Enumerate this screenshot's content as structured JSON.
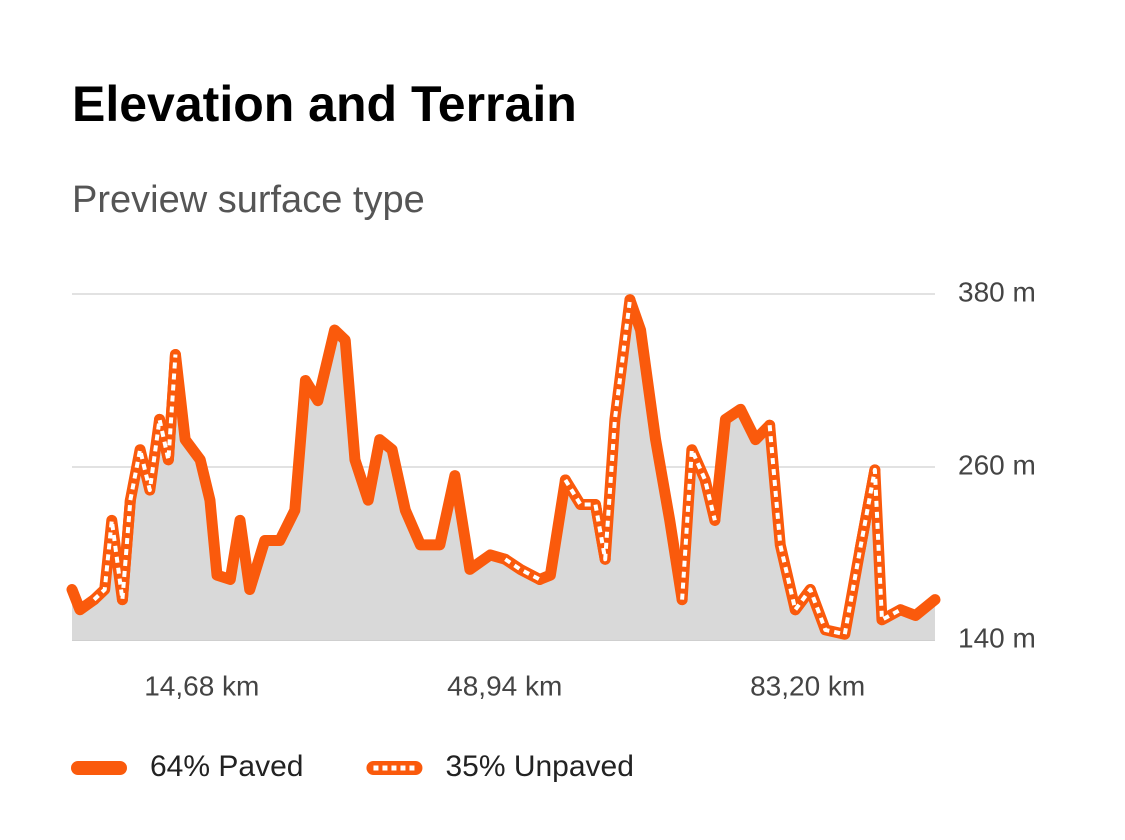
{
  "chart_data": {
    "type": "area-surface",
    "title": "Elevation and Terrain",
    "subtitle": "Preview surface type",
    "xlim": [
      0,
      97.6
    ],
    "xticks": [
      {
        "value": 14.68,
        "label": "14,68 km"
      },
      {
        "value": 48.94,
        "label": "48,94 km"
      },
      {
        "value": 83.2,
        "label": "83,20 km"
      }
    ],
    "ylim": [
      140,
      380
    ],
    "yticks": [
      {
        "value": 140,
        "label": "140 m"
      },
      {
        "value": 260,
        "label": "260 m"
      },
      {
        "value": 380,
        "label": "380 m"
      }
    ],
    "grid": true,
    "area_color": "#d9d9d9",
    "x": [
      0,
      0.9,
      2.5,
      3.7,
      4.5,
      5.7,
      6.6,
      7.7,
      8.8,
      9.9,
      10.9,
      11.7,
      12.8,
      14.5,
      15.6,
      16.4,
      17.9,
      19.0,
      20.1,
      21.8,
      23.5,
      25.2,
      26.4,
      27.8,
      29.7,
      30.9,
      32.0,
      33.5,
      34.8,
      36.2,
      37.7,
      39.4,
      41.6,
      43.3,
      45.0,
      47.3,
      49.0,
      50.7,
      52.9,
      54.1,
      55.8,
      57.5,
      59.2,
      60.3,
      61.4,
      63.1,
      64.3,
      66.0,
      67.6,
      69.0,
      70.1,
      71.6,
      72.7,
      73.9,
      75.6,
      77.3,
      78.9,
      80.1,
      81.8,
      83.5,
      85.2,
      87.4,
      89.1,
      90.8,
      91.6,
      93.7,
      95.4,
      97.6
    ],
    "series": [
      {
        "name": "64% Paved",
        "color": "#fa5a0c",
        "style": "solid",
        "values": [
          175,
          161,
          168,
          null,
          null,
          168,
          237,
          null,
          null,
          293,
          265,
          338,
          279,
          265,
          237,
          185,
          182,
          223,
          175,
          209,
          209,
          230,
          320,
          306,
          355,
          348,
          265,
          237,
          279,
          272,
          230,
          206,
          206,
          254,
          189,
          199,
          196,
          null,
          182,
          185,
          251,
          null,
          234,
          196,
          null,
          376,
          355,
          279,
          223,
          168,
          null,
          null,
          223,
          293,
          300,
          279,
          289,
          null,
          161,
          175,
          null,
          null,
          202,
          258,
          null,
          161,
          157,
          168
        ]
      },
      {
        "name": "35% Unpaved",
        "color": "#fa5a0c",
        "style": "dashed",
        "values": [
          null,
          null,
          168,
          175,
          223,
          168,
          237,
          272,
          244,
          293,
          265,
          338,
          null,
          null,
          null,
          null,
          null,
          null,
          null,
          null,
          null,
          null,
          null,
          null,
          null,
          null,
          null,
          null,
          null,
          null,
          null,
          null,
          null,
          null,
          null,
          null,
          196,
          189,
          182,
          null,
          251,
          234,
          234,
          196,
          293,
          376,
          null,
          null,
          null,
          168,
          272,
          251,
          223,
          null,
          null,
          null,
          289,
          206,
          161,
          175,
          147,
          144,
          202,
          258,
          154,
          161,
          null,
          null
        ]
      }
    ]
  }
}
